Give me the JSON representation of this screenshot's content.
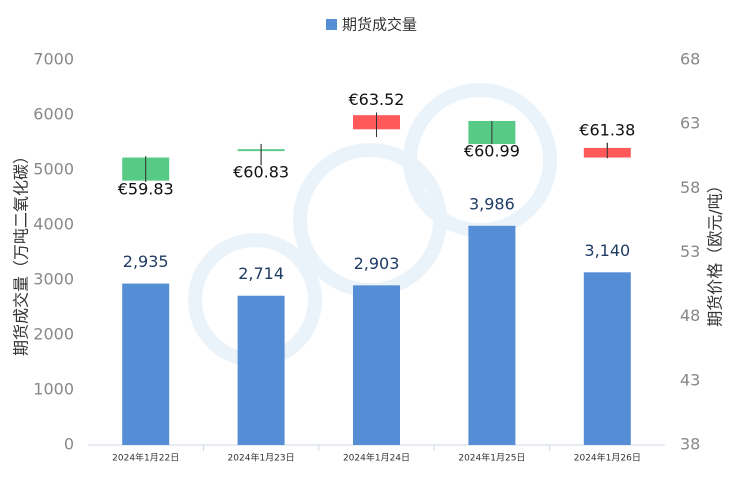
{
  "chart_data": {
    "type": "bar",
    "categories": [
      "2024年1月22日",
      "2024年1月23日",
      "2024年1月24日",
      "2024年1月25日",
      "2024年1月26日"
    ],
    "series": [
      {
        "name": "期货成交量",
        "color": "#558ed5",
        "values": [
          2935,
          2714,
          2903,
          3986,
          3140
        ],
        "value_labels": [
          "2,935",
          "2,714",
          "2,903",
          "3,986",
          "3,140"
        ]
      }
    ],
    "candlestick": {
      "axis": "y2",
      "up_color": "#ff5050",
      "down_color": "#4ec880",
      "open": [
        60.4,
        61.05,
        62.6,
        63.25,
        60.4
      ],
      "high": [
        60.5,
        61.46,
        63.9,
        63.25,
        61.55
      ],
      "low": [
        58.5,
        59.8,
        62.0,
        61.45,
        60.35
      ],
      "close": [
        58.6,
        60.9,
        63.7,
        61.45,
        61.15
      ],
      "values": [
        59.83,
        60.83,
        63.52,
        60.99,
        61.38
      ],
      "value_labels": [
        "€59.83",
        "€60.83",
        "€63.52",
        "€60.99",
        "€61.38"
      ]
    },
    "ylabel": "期货成交量（万吨二氧化碳）",
    "y2label": "期货价格（欧元/吨）",
    "ylim": [
      0,
      7000
    ],
    "yticks": [
      0,
      1000,
      2000,
      3000,
      4000,
      5000,
      6000,
      7000
    ],
    "y2lim": [
      38,
      68
    ],
    "y2ticks": [
      38,
      43,
      48,
      53,
      58,
      63,
      68
    ],
    "legend": "top"
  }
}
